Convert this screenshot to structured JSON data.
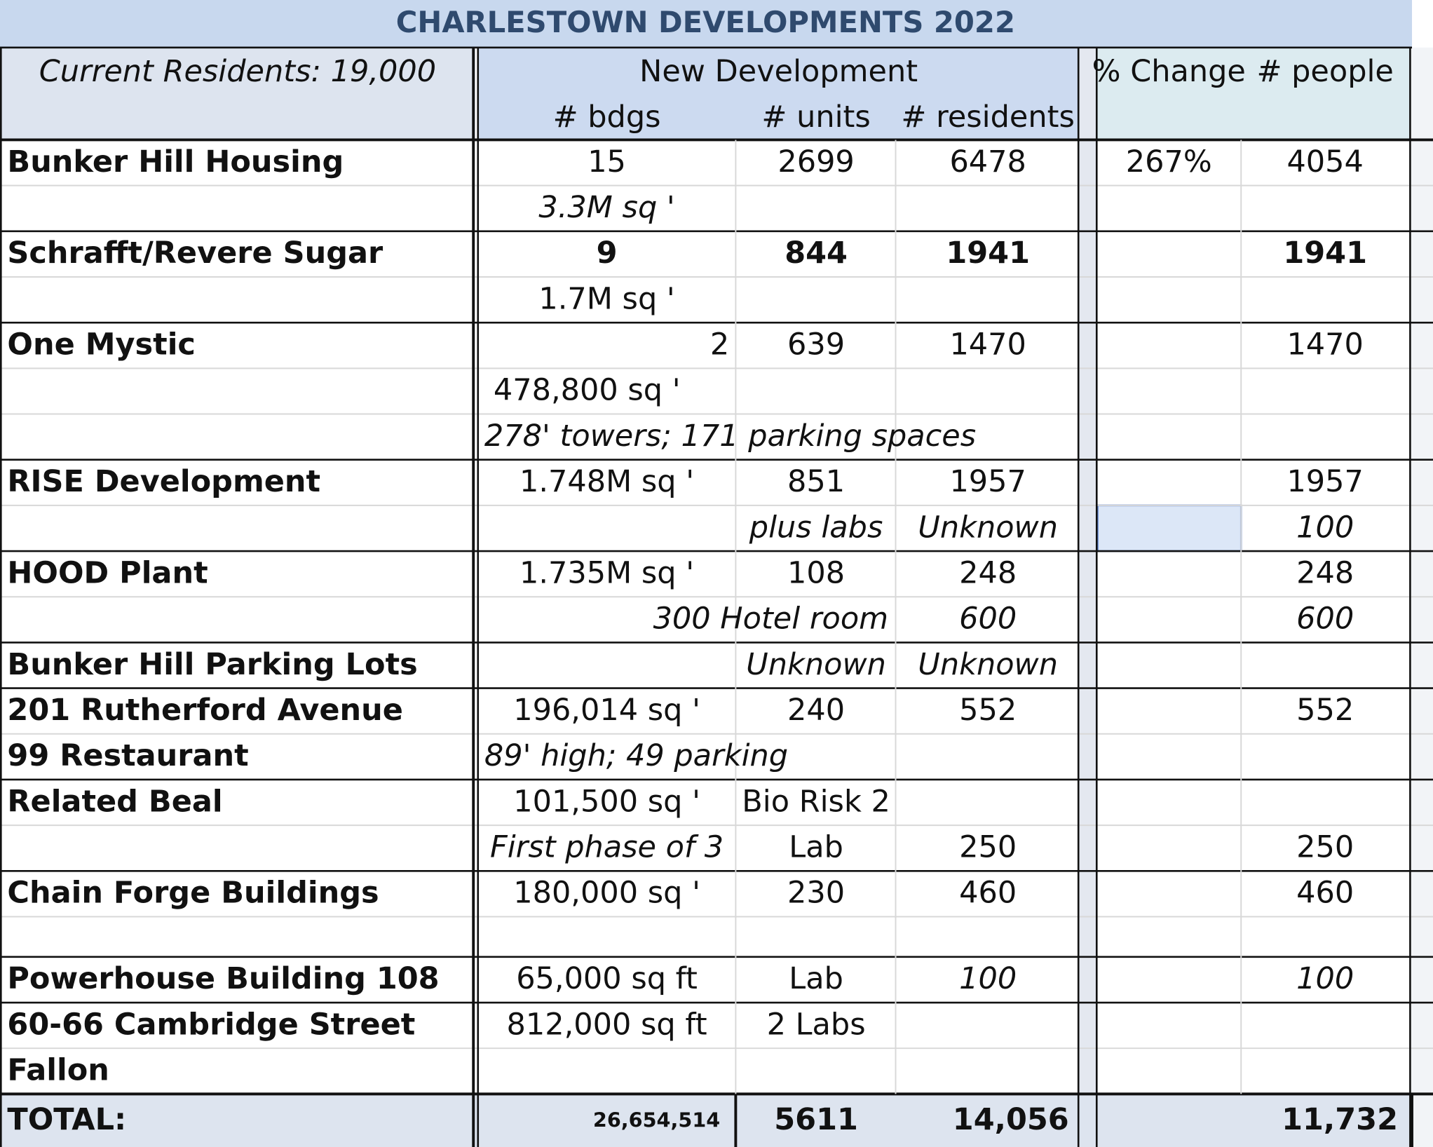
{
  "title": "CHARLESTOWN DEVELOPMENTS 2022",
  "header": {
    "residents": "Current Residents: 19,000",
    "group": "New Development",
    "bdgs": "# bdgs",
    "units": "# units",
    "new_residents": "# residents",
    "change": "% Change",
    "people": "# people"
  },
  "table": {
    "rows": [
      [
        "Bunker Hill Housing",
        "15",
        "2699",
        "6478",
        "267%",
        "4054"
      ],
      [
        null,
        "3.3M sq '",
        null,
        null,
        null,
        null
      ],
      [
        "Schrafft/Revere Sugar",
        "9",
        "844",
        "1941",
        null,
        "1941"
      ],
      [
        null,
        "1.7M sq '",
        null,
        null,
        null,
        null
      ],
      [
        "One Mystic",
        "2",
        "639",
        "1470",
        null,
        "1470"
      ],
      [
        null,
        "478,800 sq '",
        null,
        null,
        null,
        null
      ],
      [
        null,
        "278' towers;  171  parking spaces",
        null,
        null,
        null,
        null
      ],
      [
        "RISE Development",
        "1.748M sq '",
        "851",
        "1957",
        null,
        "1957"
      ],
      [
        null,
        null,
        "plus labs",
        "Unknown",
        null,
        "100"
      ],
      [
        "HOOD Plant",
        "1.735M sq '",
        "108",
        "248",
        null,
        "248"
      ],
      [
        null,
        "300 Hotel room",
        null,
        "600",
        null,
        "600"
      ],
      [
        "Bunker Hill Parking Lots",
        null,
        "Unknown",
        "Unknown",
        null,
        null
      ],
      [
        "201 Rutherford Avenue",
        "196,014 sq '",
        "240",
        "552",
        null,
        "552"
      ],
      [
        "99 Restaurant",
        "89' high; 49 parking",
        null,
        null,
        null,
        null
      ],
      [
        "Related Beal",
        "101,500 sq '",
        "Bio Risk 2",
        null,
        null,
        null
      ],
      [
        null,
        "First phase of 3",
        "Lab",
        "250",
        null,
        "250"
      ],
      [
        "Chain Forge Buildings",
        "180,000 sq '",
        "230",
        "460",
        null,
        "460"
      ],
      [
        null,
        null,
        null,
        null,
        null,
        null
      ],
      [
        "Powerhouse Building 108",
        "65,000 sq ft",
        "Lab",
        "100",
        null,
        "100"
      ],
      [
        "60-66 Cambridge Street",
        "812,000 sq ft",
        "2 Labs",
        null,
        null,
        null
      ],
      [
        "Fallon",
        null,
        null,
        null,
        null,
        null
      ],
      [
        "TOTAL:",
        "26,654,514",
        "5611",
        "14,056",
        null,
        "11,732"
      ]
    ]
  }
}
